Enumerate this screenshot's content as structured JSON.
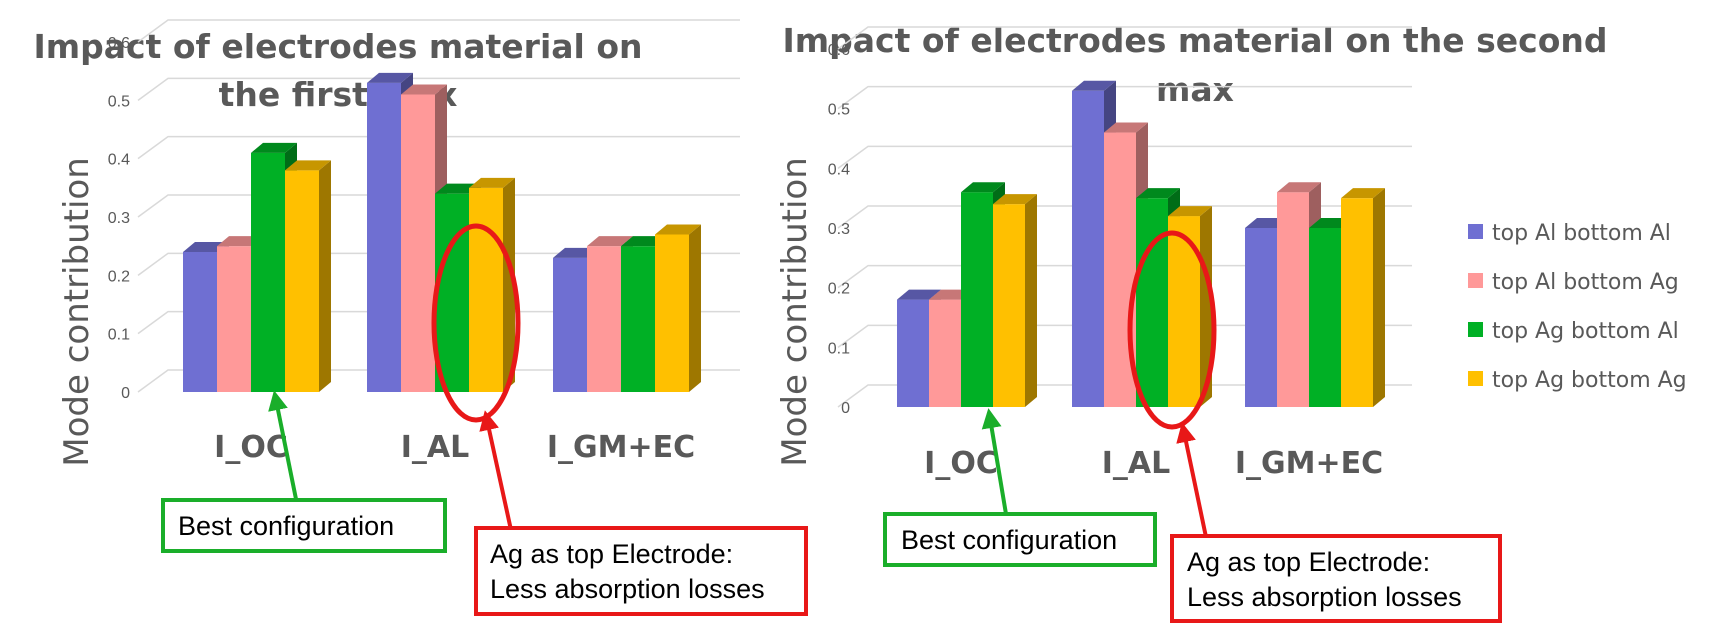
{
  "colors": {
    "top Al bottom Al": "#6f6fd2",
    "top Al bottom Ag": "#ff9999",
    "top Ag bottom Al": "#00b025",
    "top Ag bottom Ag": "#ffc000",
    "green_annotation": "#1aae2a",
    "red_annotation": "#e81818"
  },
  "legend": {
    "items": [
      "top Al bottom Al",
      "top Al bottom Ag",
      "top Ag bottom Al",
      "top Ag bottom Ag"
    ],
    "placement": "right"
  },
  "chart_data": [
    {
      "type": "bar",
      "title_lines": [
        "Impact of electrodes material on",
        "the first max"
      ],
      "ylabel": "Mode contribution",
      "xlabel": "",
      "categories": [
        "I_OC",
        "I_AL",
        "I_GM+EC"
      ],
      "ylim": [
        0,
        0.6
      ],
      "yticks": [
        "0",
        "0.1",
        "0.2",
        "0.3",
        "0.4",
        "0.5",
        "0.6"
      ],
      "grid": true,
      "series": [
        {
          "name": "top Al bottom Al",
          "values": [
            0.24,
            0.53,
            0.23
          ]
        },
        {
          "name": "top Al bottom Ag",
          "values": [
            0.25,
            0.51,
            0.25
          ]
        },
        {
          "name": "top Ag bottom Al",
          "values": [
            0.41,
            0.34,
            0.25
          ]
        },
        {
          "name": "top Ag bottom Ag",
          "values": [
            0.38,
            0.35,
            0.27
          ]
        }
      ],
      "annotations": [
        {
          "text": "Best configuration",
          "lines": [
            "Best configuration"
          ],
          "color": "green"
        },
        {
          "text": "Ag as top Electrode: Less absorption losses",
          "lines": [
            "Ag as top Electrode:",
            "Less absorption losses"
          ],
          "color": "red"
        }
      ]
    },
    {
      "type": "bar",
      "title_lines": [
        "Impact of electrodes material on the second",
        "max"
      ],
      "ylabel": "Mode contribution",
      "xlabel": "",
      "categories": [
        "I_OC",
        "I_AL",
        "I_GM+EC"
      ],
      "ylim": [
        0,
        0.6
      ],
      "yticks": [
        "0",
        "0.1",
        "0.2",
        "0.3",
        "0.4",
        "0.5",
        "0.6"
      ],
      "grid": true,
      "series": [
        {
          "name": "top Al bottom Al",
          "values": [
            0.18,
            0.53,
            0.3
          ]
        },
        {
          "name": "top Al bottom Ag",
          "values": [
            0.18,
            0.46,
            0.36
          ]
        },
        {
          "name": "top Ag bottom Al",
          "values": [
            0.36,
            0.35,
            0.3
          ]
        },
        {
          "name": "top Ag bottom Ag",
          "values": [
            0.34,
            0.32,
            0.35
          ]
        }
      ],
      "annotations": [
        {
          "text": "Best configuration",
          "lines": [
            "Best configuration"
          ],
          "color": "green"
        },
        {
          "text": "Ag as top Electrode: Less absorption losses",
          "lines": [
            "Ag as top Electrode:",
            "Less absorption losses"
          ],
          "color": "red"
        }
      ]
    }
  ]
}
